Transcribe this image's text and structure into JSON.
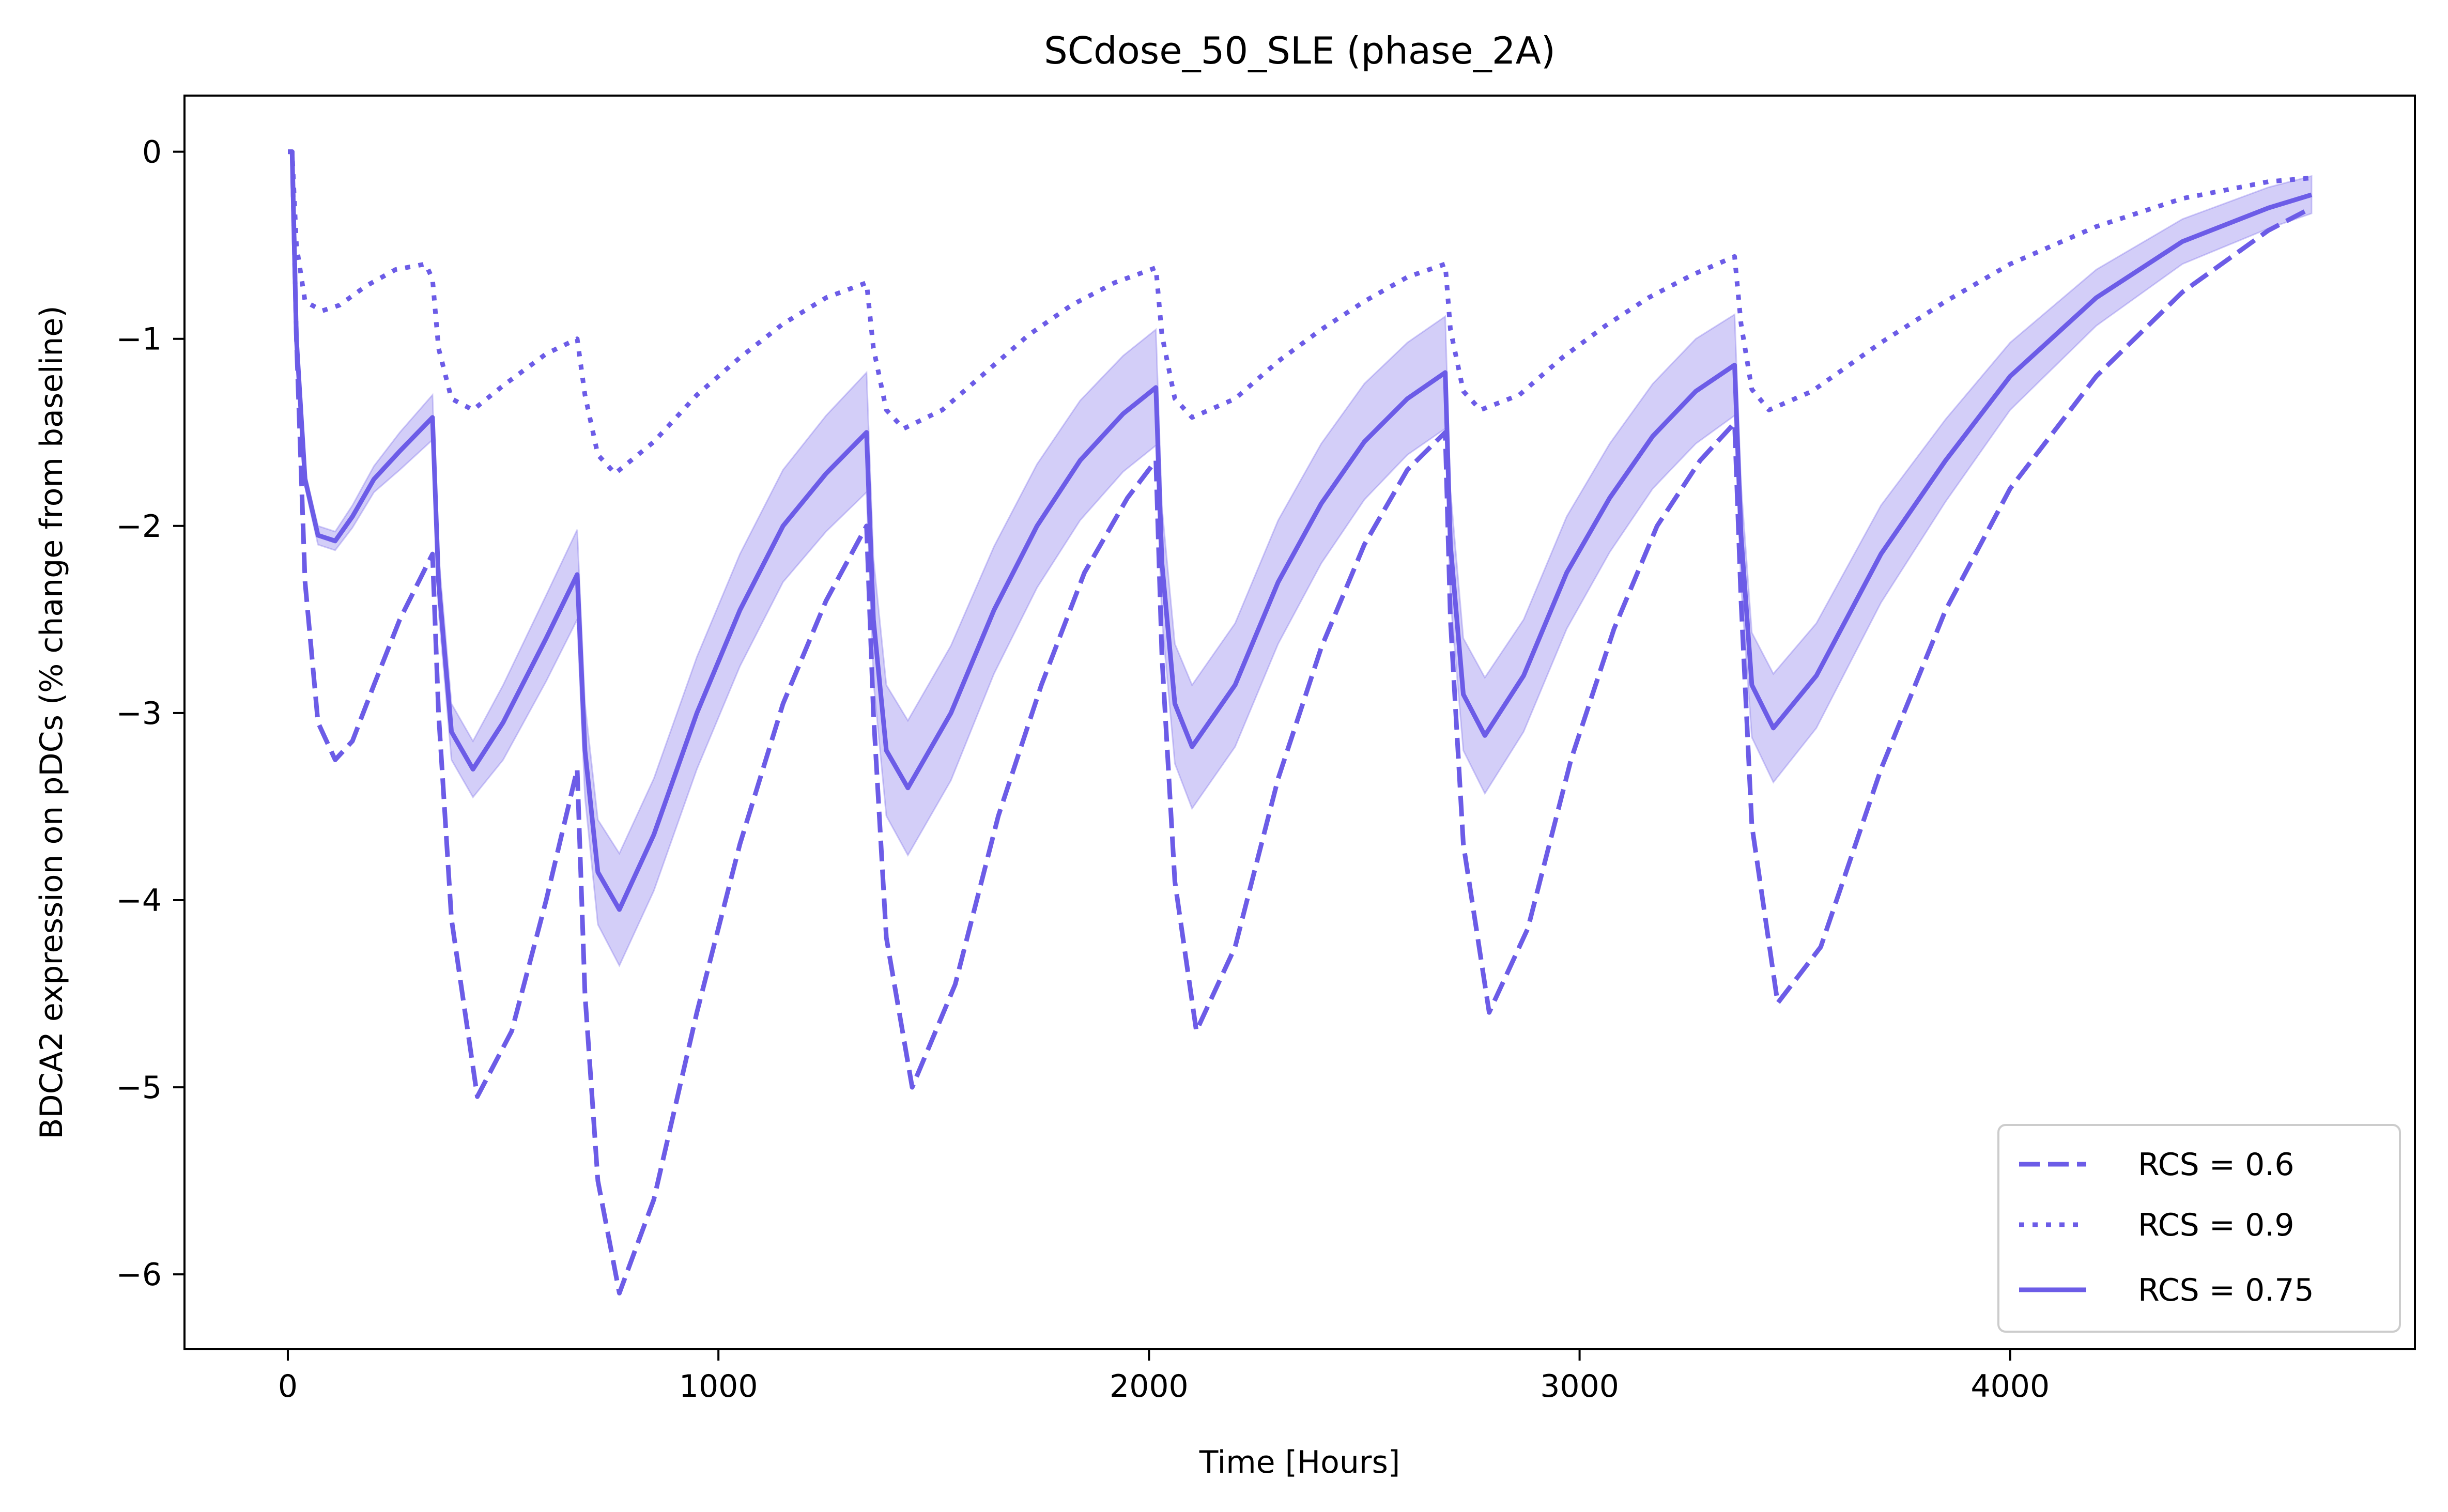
{
  "chart_data": {
    "type": "line",
    "title": "SCdose_50_SLE (phase_2A)",
    "xlabel": "Time [Hours]",
    "ylabel": "BDCA2 expression on pDCs (% change from baseline)",
    "xlim": [
      -240,
      4940
    ],
    "ylim": [
      -6.4,
      0.3
    ],
    "xticks": [
      0,
      1000,
      2000,
      3000,
      4000
    ],
    "yticks": [
      0,
      -1,
      -2,
      -3,
      -4,
      -5,
      -6
    ],
    "xtick_labels": [
      "0",
      "1000",
      "2000",
      "3000",
      "4000"
    ],
    "ytick_labels": [
      "0",
      "−1",
      "−2",
      "−3",
      "−4",
      "−5",
      "−6"
    ],
    "legend_position": "lower right",
    "color": "#6c5ce7",
    "series": [
      {
        "name": "RCS = 0.6",
        "style": "dashed",
        "x": [
          0,
          10,
          20,
          40,
          70,
          110,
          150,
          200,
          260,
          336,
          350,
          380,
          440,
          520,
          600,
          672,
          690,
          720,
          770,
          850,
          950,
          1050,
          1150,
          1250,
          1344,
          1360,
          1390,
          1450,
          1550,
          1650,
          1750,
          1850,
          1950,
          2016,
          2030,
          2060,
          2110,
          2200,
          2300,
          2400,
          2500,
          2600,
          2688,
          2700,
          2730,
          2790,
          2880,
          2980,
          3080,
          3180,
          3280,
          3360,
          3375,
          3400,
          3460,
          3560,
          3700,
          3850,
          4000,
          4200,
          4400,
          4600,
          4700
        ],
        "y": [
          0,
          0,
          -1.0,
          -2.3,
          -3.05,
          -3.25,
          -3.15,
          -2.85,
          -2.5,
          -2.15,
          -3.0,
          -4.1,
          -5.05,
          -4.7,
          -4.0,
          -3.3,
          -4.5,
          -5.5,
          -6.1,
          -5.6,
          -4.6,
          -3.7,
          -2.95,
          -2.4,
          -2.0,
          -3.0,
          -4.2,
          -5.0,
          -4.45,
          -3.55,
          -2.85,
          -2.25,
          -1.85,
          -1.65,
          -2.7,
          -3.9,
          -4.7,
          -4.25,
          -3.35,
          -2.65,
          -2.1,
          -1.7,
          -1.5,
          -2.5,
          -3.7,
          -4.6,
          -4.15,
          -3.25,
          -2.55,
          -2.0,
          -1.65,
          -1.45,
          -2.4,
          -3.6,
          -4.55,
          -4.25,
          -3.3,
          -2.45,
          -1.8,
          -1.2,
          -0.75,
          -0.42,
          -0.3
        ]
      },
      {
        "name": "RCS = 0.9",
        "style": "dotted",
        "x": [
          0,
          10,
          20,
          40,
          80,
          120,
          180,
          250,
          320,
          336,
          350,
          380,
          430,
          500,
          600,
          672,
          690,
          720,
          760,
          850,
          950,
          1050,
          1150,
          1250,
          1344,
          1360,
          1390,
          1430,
          1520,
          1620,
          1720,
          1820,
          1920,
          2016,
          2030,
          2060,
          2100,
          2200,
          2300,
          2400,
          2500,
          2600,
          2688,
          2700,
          2730,
          2770,
          2860,
          2960,
          3060,
          3160,
          3260,
          3360,
          3375,
          3400,
          3440,
          3540,
          3700,
          3850,
          4000,
          4200,
          4400,
          4600,
          4700
        ],
        "y": [
          0,
          0,
          -0.5,
          -0.8,
          -0.85,
          -0.82,
          -0.72,
          -0.63,
          -0.6,
          -0.68,
          -1.05,
          -1.32,
          -1.38,
          -1.25,
          -1.08,
          -1.0,
          -1.3,
          -1.62,
          -1.72,
          -1.55,
          -1.3,
          -1.1,
          -0.92,
          -0.78,
          -0.7,
          -1.05,
          -1.38,
          -1.48,
          -1.38,
          -1.18,
          -0.98,
          -0.82,
          -0.7,
          -0.62,
          -0.98,
          -1.32,
          -1.42,
          -1.32,
          -1.12,
          -0.95,
          -0.8,
          -0.67,
          -0.6,
          -0.95,
          -1.28,
          -1.38,
          -1.3,
          -1.1,
          -0.93,
          -0.78,
          -0.66,
          -0.56,
          -0.92,
          -1.27,
          -1.38,
          -1.28,
          -1.02,
          -0.8,
          -0.6,
          -0.4,
          -0.25,
          -0.16,
          -0.14
        ]
      },
      {
        "name": "RCS = 0.75",
        "style": "solid",
        "band": true,
        "x": [
          0,
          10,
          20,
          40,
          70,
          110,
          150,
          200,
          260,
          336,
          350,
          380,
          430,
          500,
          600,
          672,
          690,
          720,
          770,
          850,
          950,
          1050,
          1150,
          1250,
          1344,
          1360,
          1390,
          1440,
          1540,
          1640,
          1740,
          1840,
          1940,
          2016,
          2030,
          2060,
          2100,
          2200,
          2300,
          2400,
          2500,
          2600,
          2688,
          2700,
          2730,
          2780,
          2870,
          2970,
          3070,
          3170,
          3270,
          3360,
          3375,
          3400,
          3450,
          3550,
          3700,
          3850,
          4000,
          4200,
          4400,
          4600,
          4700
        ],
        "y": [
          0,
          0,
          -1.0,
          -1.75,
          -2.05,
          -2.08,
          -1.95,
          -1.75,
          -1.6,
          -1.42,
          -2.3,
          -3.1,
          -3.3,
          -3.05,
          -2.6,
          -2.26,
          -3.2,
          -3.85,
          -4.05,
          -3.65,
          -3.0,
          -2.45,
          -2.0,
          -1.72,
          -1.5,
          -2.5,
          -3.2,
          -3.4,
          -3.0,
          -2.45,
          -2.0,
          -1.65,
          -1.4,
          -1.26,
          -2.2,
          -2.95,
          -3.18,
          -2.85,
          -2.3,
          -1.88,
          -1.55,
          -1.32,
          -1.18,
          -2.1,
          -2.9,
          -3.12,
          -2.8,
          -2.25,
          -1.85,
          -1.52,
          -1.28,
          -1.14,
          -2.05,
          -2.85,
          -3.08,
          -2.8,
          -2.15,
          -1.65,
          -1.2,
          -0.78,
          -0.48,
          -0.3,
          -0.23
        ],
        "band_half_width": [
          0,
          0,
          0.03,
          0.04,
          0.05,
          0.05,
          0.06,
          0.07,
          0.1,
          0.12,
          0.15,
          0.15,
          0.15,
          0.2,
          0.23,
          0.24,
          0.25,
          0.28,
          0.3,
          0.3,
          0.3,
          0.3,
          0.3,
          0.31,
          0.32,
          0.33,
          0.35,
          0.36,
          0.36,
          0.34,
          0.33,
          0.32,
          0.31,
          0.31,
          0.3,
          0.32,
          0.33,
          0.33,
          0.33,
          0.32,
          0.31,
          0.3,
          0.3,
          0.29,
          0.3,
          0.31,
          0.3,
          0.3,
          0.29,
          0.28,
          0.28,
          0.27,
          0.27,
          0.28,
          0.29,
          0.28,
          0.26,
          0.22,
          0.18,
          0.15,
          0.12,
          0.11,
          0.1
        ]
      }
    ]
  }
}
